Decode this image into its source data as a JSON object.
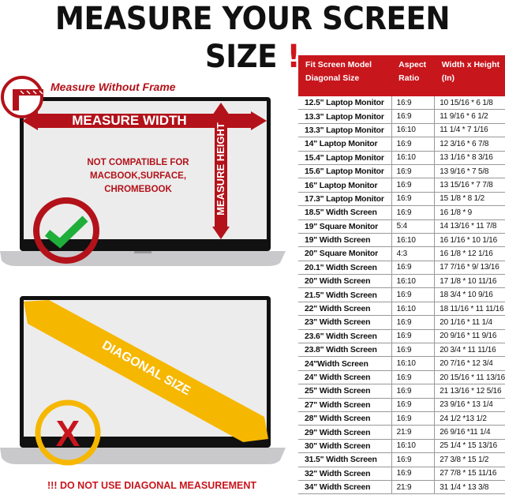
{
  "title": {
    "text": "MEASURE YOUR SCREEN SIZE",
    "exclamation": "!"
  },
  "colors": {
    "brand_red": "#c8161d",
    "accent_yellow": "#f6b700",
    "check_green": "#1fae3a"
  },
  "top_illustration": {
    "frame_label": "Measure Without Frame",
    "width_arrow": "MEASURE WIDTH",
    "height_arrow": "MEASURE HEIGHT",
    "notice_lines": [
      "NOT COMPATIBLE FOR",
      "MACBOOK,SURFACE,",
      "CHROMEBOOK"
    ],
    "badge_icon": "check-icon"
  },
  "bottom_illustration": {
    "diagonal_label": "DIAGONAL SIZE",
    "badge_icon": "x-icon",
    "warning": "!!! DO NOT USE DIAGONAL MEASUREMENT"
  },
  "table": {
    "headers": [
      "Fit Screen Model Diagonal Size",
      "Aspect Ratio",
      "Width x Height (In)"
    ],
    "rows": [
      [
        "12.5\" Laptop Monitor",
        "16:9",
        "10 15/16 * 6 1/8"
      ],
      [
        "13.3\" Laptop Monitor",
        "16:9",
        "11 9/16 * 6 1/2"
      ],
      [
        "13.3\" Laptop Monitor",
        "16:10",
        "11 1/4 * 7 1/16"
      ],
      [
        "14\" Laptop Monitor",
        "16:9",
        "12 3/16 * 6 7/8"
      ],
      [
        "15.4\" Laptop Monitor",
        "16:10",
        "13 1/16 * 8 3/16"
      ],
      [
        "15.6\" Laptop Monitor",
        "16:9",
        "13 9/16 * 7 5/8"
      ],
      [
        "16\" Laptop Monitor",
        "16:9",
        "13 15/16 * 7 7/8"
      ],
      [
        "17.3\" Laptop Monitor",
        "16:9",
        "15 1/8 * 8 1/2"
      ],
      [
        "18.5\" Width Screen",
        "16:9",
        "16 1/8 * 9"
      ],
      [
        "19\" Square Monitor",
        "5:4",
        "14 13/16 * 11 7/8"
      ],
      [
        "19\" Width Screen",
        "16:10",
        "16 1/16 * 10 1/16"
      ],
      [
        "20\" Square Monitor",
        "4:3",
        "16 1/8 * 12 1/16"
      ],
      [
        "20.1\" Width Screen",
        "16:9",
        "17 7/16 * 9/ 13/16"
      ],
      [
        "20\" Width Screen",
        "16:10",
        "17 1/8 * 10 11/16"
      ],
      [
        "21.5\" Width Screen",
        "16:9",
        "18 3/4 * 10 9/16"
      ],
      [
        "22\" Width Screen",
        "16:10",
        "18 11/16 * 11 11/16"
      ],
      [
        "23\" Width Screen",
        "16:9",
        "20 1/16 * 11 1/4"
      ],
      [
        "23.6\" Width Screen",
        "16:9",
        "20 9/16 * 11 9/16"
      ],
      [
        "23.8\" Width Screen",
        "16:9",
        "20 3/4 * 11 11/16"
      ],
      [
        "24\"Width Screen",
        "16:10",
        "20 7/16 * 12 3/4"
      ],
      [
        "24\" Width Screen",
        "16:9",
        "20 15/16 * 11 13/16"
      ],
      [
        "25\" Width Screen",
        "16:9",
        "21 13/16 * 12 5/16"
      ],
      [
        "27\" Width Screen",
        "16:9",
        "23 9/16 * 13 1/4"
      ],
      [
        "28\" Width Screen",
        "16:9",
        "24 1/2 *13 1/2"
      ],
      [
        "29\" Width Screen",
        "21:9",
        "26 9/16 *11 1/4"
      ],
      [
        "30\" Width Screen",
        "16:10",
        "25 1/4 * 15 13/16"
      ],
      [
        "31.5\" Width Screen",
        "16:9",
        "27 3/8 * 15 1/2"
      ],
      [
        "32\" Width Screen",
        "16:9",
        "27 7/8 * 15 11/16"
      ],
      [
        "34\" Width Screen",
        "21:9",
        "31 1/4 * 13 3/8"
      ]
    ]
  }
}
